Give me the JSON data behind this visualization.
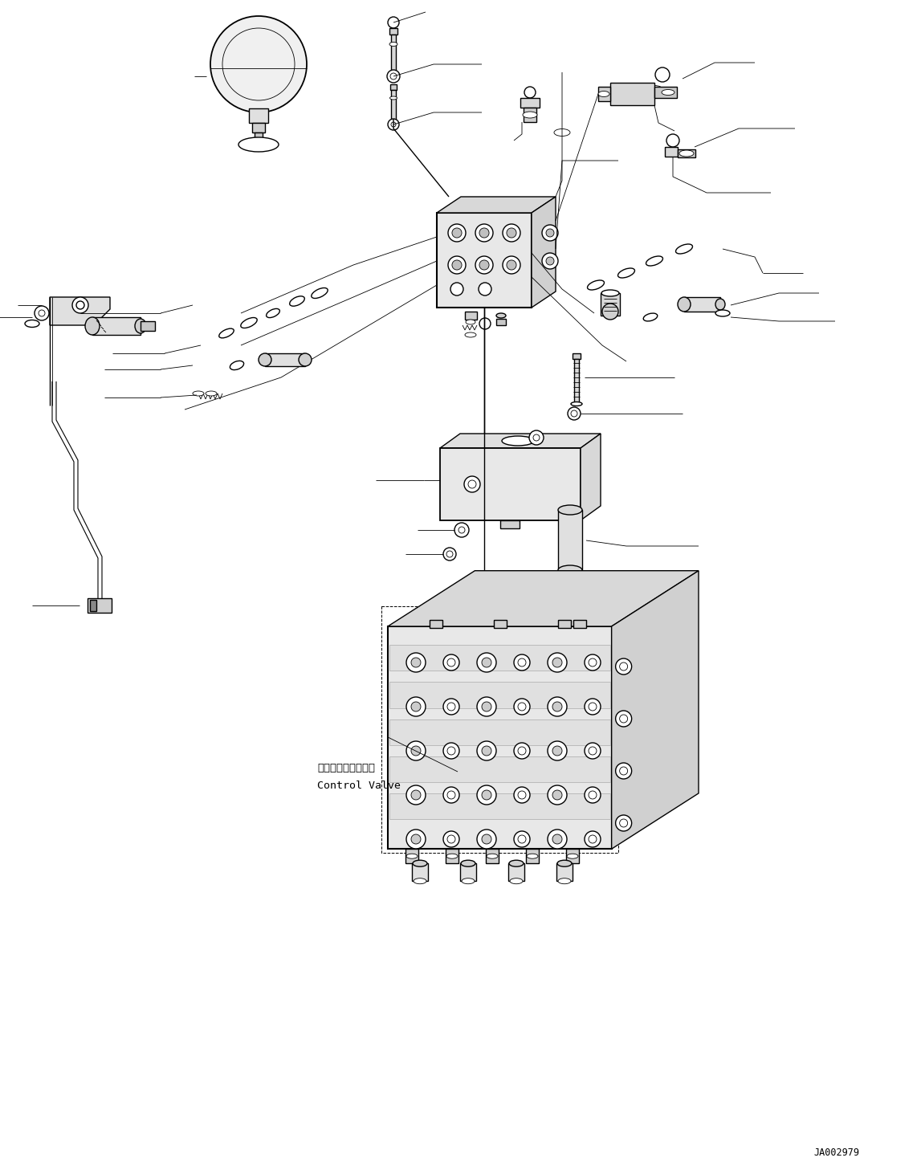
{
  "bg_color": "#ffffff",
  "lc": "#000000",
  "lw": 1.0,
  "tlw": 0.6,
  "label_code": "JA002979",
  "cv_jp": "コントロールバルブ",
  "cv_en": "Control Valve",
  "fig_w": 11.47,
  "fig_h": 14.62,
  "dpi": 100
}
